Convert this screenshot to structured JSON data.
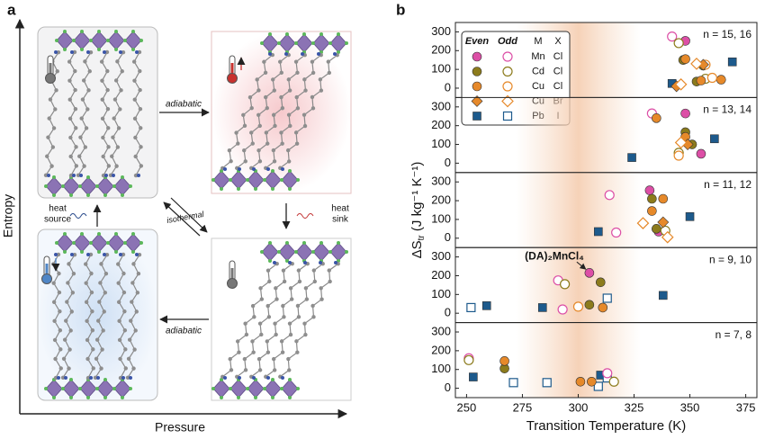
{
  "panel_labels": [
    "a",
    "b"
  ],
  "diagram": {
    "y_axis": "Entropy",
    "x_axis": "Pressure",
    "top_arrow": "adiabatic",
    "bottom_arrow": "adiabatic",
    "diagonal_arrow": "isothermal",
    "heat_source": [
      "heat",
      "source"
    ],
    "heat_sink": [
      "heat",
      "sink"
    ]
  },
  "chart_data": [
    {
      "type": "scatter",
      "label": "n = 15, 16",
      "xlim": [
        245,
        380
      ],
      "ylim": [
        -50,
        350
      ],
      "yticks": [
        0,
        100,
        200,
        300
      ],
      "highlight": [
        272,
        328
      ],
      "legend": {
        "header": [
          "Even",
          "Odd",
          "M",
          "X"
        ],
        "rows": [
          {
            "M": "Mn",
            "X": "Cl",
            "color": "#dc4fa6",
            "marker": "circle"
          },
          {
            "M": "Cd",
            "X": "Cl",
            "color": "#8c7b1c",
            "marker": "circle"
          },
          {
            "M": "Cu",
            "X": "Cl",
            "color": "#e6892a",
            "marker": "circle"
          },
          {
            "M": "Cu",
            "X": "Br",
            "color": "#e6892a",
            "marker": "diamond"
          },
          {
            "M": "Pb",
            "X": "I",
            "color": "#1d5a8c",
            "marker": "square"
          }
        ]
      },
      "series": [
        {
          "row": 4,
          "filled": true,
          "x": [
            342,
            369
          ],
          "values": [
            25,
            140
          ]
        },
        {
          "row": 0,
          "filled": true,
          "x": [
            348
          ],
          "values": [
            252
          ]
        },
        {
          "row": 0,
          "filled": false,
          "x": [
            342
          ],
          "values": [
            275
          ]
        },
        {
          "row": 1,
          "filled": true,
          "x": [
            347,
            353,
            356
          ],
          "values": [
            150,
            35,
            120
          ]
        },
        {
          "row": 1,
          "filled": false,
          "x": [
            345,
            357
          ],
          "values": [
            240,
            50
          ]
        },
        {
          "row": 2,
          "filled": true,
          "x": [
            348,
            355,
            364
          ],
          "values": [
            155,
            40,
            45
          ]
        },
        {
          "row": 2,
          "filled": false,
          "x": [
            360,
            357
          ],
          "values": [
            55,
            125
          ]
        },
        {
          "row": 3,
          "filled": true,
          "x": [
            344,
            356
          ],
          "values": [
            10,
            125
          ]
        },
        {
          "row": 3,
          "filled": false,
          "x": [
            353,
            346
          ],
          "values": [
            130,
            20
          ]
        }
      ]
    },
    {
      "type": "scatter",
      "label": "n = 13, 14",
      "xlim": [
        245,
        380
      ],
      "ylim": [
        -50,
        350
      ],
      "yticks": [
        0,
        100,
        200,
        300
      ],
      "highlight": [
        272,
        328
      ],
      "series": [
        {
          "row": 4,
          "filled": true,
          "x": [
            324,
            361
          ],
          "values": [
            30,
            130
          ]
        },
        {
          "row": 0,
          "filled": true,
          "x": [
            348,
            355
          ],
          "values": [
            265,
            50
          ]
        },
        {
          "row": 0,
          "filled": false,
          "x": [
            333
          ],
          "values": [
            265
          ]
        },
        {
          "row": 1,
          "filled": true,
          "x": [
            348,
            351
          ],
          "values": [
            165,
            100
          ]
        },
        {
          "row": 1,
          "filled": false,
          "x": [
            345
          ],
          "values": [
            55
          ]
        },
        {
          "row": 2,
          "filled": true,
          "x": [
            335,
            348
          ],
          "values": [
            240,
            140
          ]
        },
        {
          "row": 2,
          "filled": false,
          "x": [
            345
          ],
          "values": [
            40
          ]
        },
        {
          "row": 3,
          "filled": true,
          "x": [
            349
          ],
          "values": [
            100
          ]
        },
        {
          "row": 3,
          "filled": false,
          "x": [
            346
          ],
          "values": [
            110
          ]
        }
      ]
    },
    {
      "type": "scatter",
      "label": "n = 11, 12",
      "xlim": [
        245,
        380
      ],
      "ylim": [
        -50,
        350
      ],
      "yticks": [
        0,
        100,
        200,
        300
      ],
      "highlight": [
        272,
        328
      ],
      "y_label": {
        "main": "ΔS",
        "sub": "tr",
        "unit": " (J kg⁻¹ K⁻¹)"
      },
      "series": [
        {
          "row": 4,
          "filled": true,
          "x": [
            309,
            350
          ],
          "values": [
            35,
            115
          ]
        },
        {
          "row": 0,
          "filled": true,
          "x": [
            332,
            336
          ],
          "values": [
            255,
            35
          ]
        },
        {
          "row": 0,
          "filled": false,
          "x": [
            314,
            317
          ],
          "values": [
            230,
            30
          ]
        },
        {
          "row": 1,
          "filled": true,
          "x": [
            333,
            335
          ],
          "values": [
            210,
            50
          ]
        },
        {
          "row": 1,
          "filled": false,
          "x": [
            339
          ],
          "values": [
            40
          ]
        },
        {
          "row": 2,
          "filled": true,
          "x": [
            338,
            333
          ],
          "values": [
            210,
            145
          ]
        },
        {
          "row": 3,
          "filled": true,
          "x": [
            338
          ],
          "values": [
            85
          ]
        },
        {
          "row": 3,
          "filled": false,
          "x": [
            329,
            340
          ],
          "values": [
            80,
            5
          ]
        }
      ]
    },
    {
      "type": "scatter",
      "label": "n = 9, 10",
      "xlim": [
        245,
        380
      ],
      "ylim": [
        -50,
        350
      ],
      "yticks": [
        0,
        100,
        200,
        300
      ],
      "highlight": [
        272,
        328
      ],
      "series": [
        {
          "row": 4,
          "filled": true,
          "x": [
            259,
            284,
            338
          ],
          "values": [
            40,
            30,
            95
          ]
        },
        {
          "row": 4,
          "filled": false,
          "x": [
            252,
            313
          ],
          "values": [
            30,
            80
          ]
        },
        {
          "row": 0,
          "filled": true,
          "x": [
            305
          ],
          "values": [
            215
          ],
          "annotation": "(DA)₂MnCl₄"
        },
        {
          "row": 0,
          "filled": false,
          "x": [
            291,
            293
          ],
          "values": [
            175,
            20
          ]
        },
        {
          "row": 1,
          "filled": true,
          "x": [
            310,
            305
          ],
          "values": [
            165,
            45
          ]
        },
        {
          "row": 1,
          "filled": false,
          "x": [
            294
          ],
          "values": [
            155
          ]
        },
        {
          "row": 2,
          "filled": true,
          "x": [
            311
          ],
          "values": [
            30
          ]
        },
        {
          "row": 2,
          "filled": false,
          "x": [
            300
          ],
          "values": [
            35
          ]
        }
      ]
    },
    {
      "type": "scatter",
      "label": "n = 7, 8",
      "xlim": [
        245,
        380
      ],
      "ylim": [
        -50,
        350
      ],
      "yticks": [
        0,
        100,
        200,
        300
      ],
      "highlight": [
        272,
        328
      ],
      "xticks": [
        250,
        275,
        300,
        325,
        350,
        375
      ],
      "x_label": "Transition Temperature (K)",
      "series": [
        {
          "row": 4,
          "filled": true,
          "x": [
            253,
            310
          ],
          "values": [
            60,
            70
          ]
        },
        {
          "row": 4,
          "filled": false,
          "x": [
            271,
            286,
            309,
            313
          ],
          "values": [
            30,
            30,
            10,
            55
          ]
        },
        {
          "row": 0,
          "filled": false,
          "x": [
            251,
            313
          ],
          "values": [
            160,
            80
          ]
        },
        {
          "row": 1,
          "filled": true,
          "x": [
            267
          ],
          "values": [
            105
          ]
        },
        {
          "row": 1,
          "filled": false,
          "x": [
            316,
            251
          ],
          "values": [
            35,
            150
          ]
        },
        {
          "row": 2,
          "filled": true,
          "x": [
            267,
            301,
            306
          ],
          "values": [
            145,
            35,
            35
          ]
        }
      ]
    }
  ]
}
